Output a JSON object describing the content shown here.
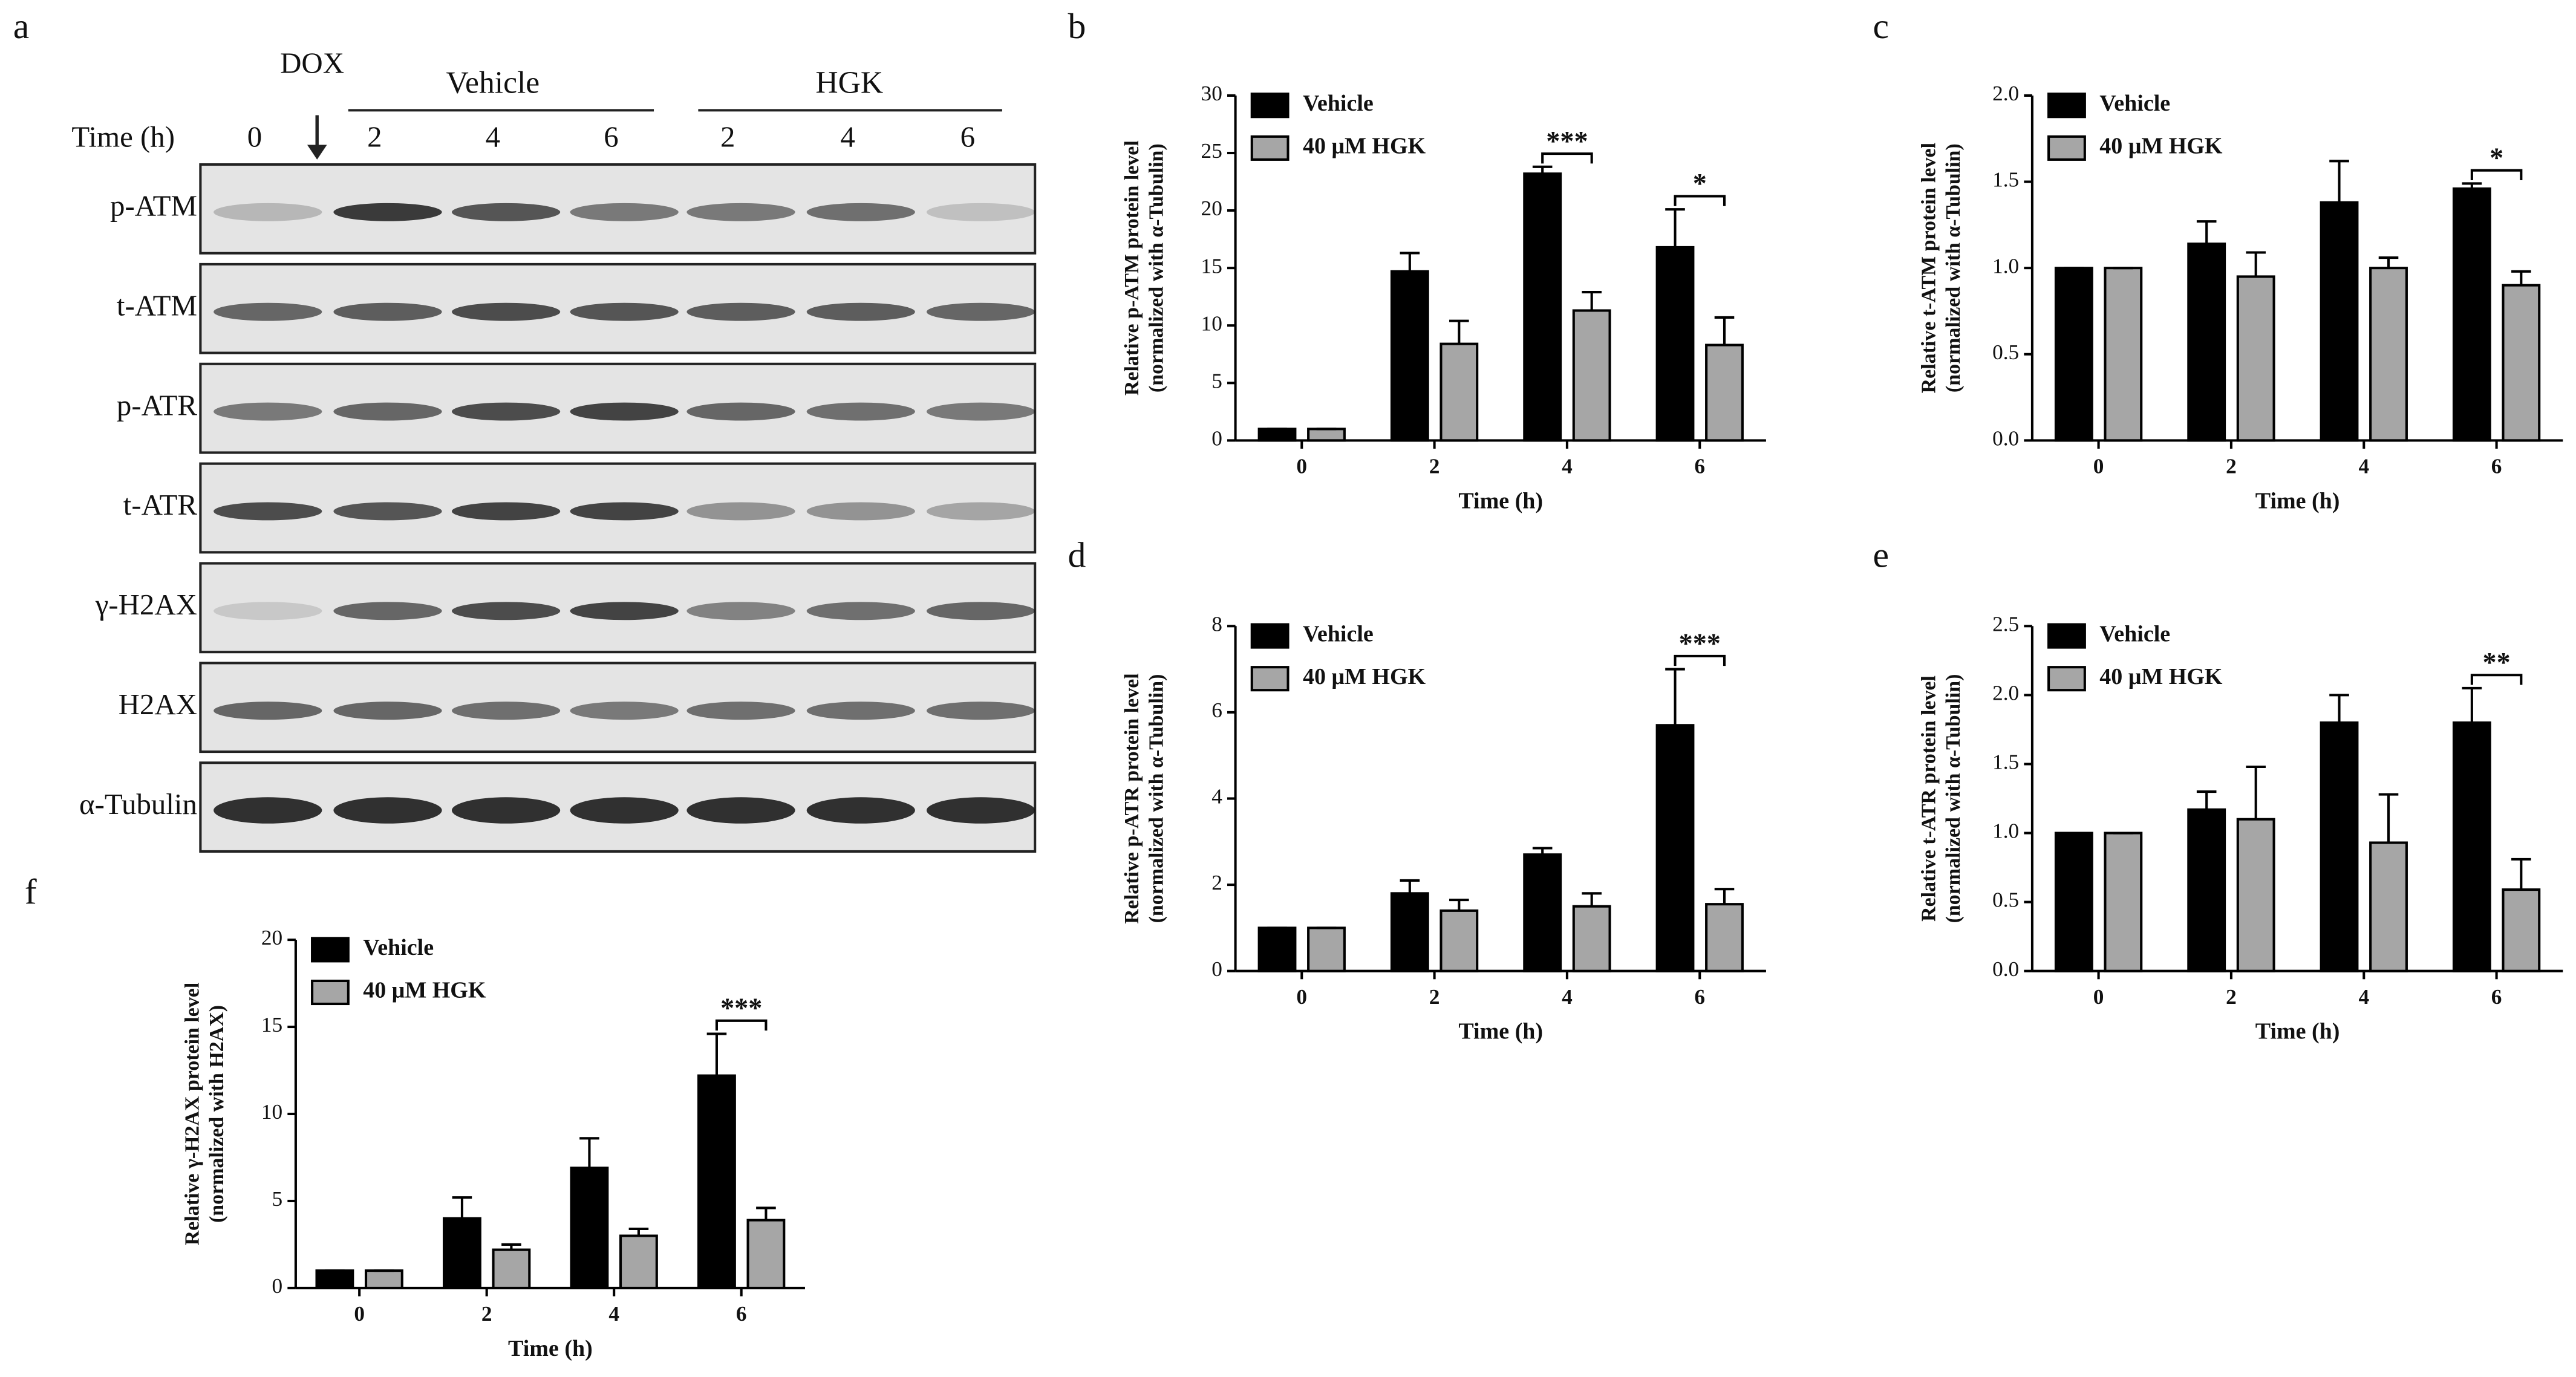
{
  "blot": {
    "panel": "a",
    "treatment": "DOX",
    "groups": [
      "Vehicle",
      "HGK"
    ],
    "time_label": "Time (h)",
    "lanes": [
      "0",
      "2",
      "4",
      "6",
      "2",
      "4",
      "6"
    ],
    "rows": [
      "p-ATM",
      "t-ATM",
      "p-ATR",
      "t-ATR",
      "γ-H2AX",
      "H2AX",
      "α-Tubulin"
    ]
  },
  "chart_data": [
    {
      "type": "bar",
      "panel": "b",
      "ylabel": [
        "Relative p-ATM protein level",
        "(normalized with α-Tubulin)"
      ],
      "xlabel": "Time (h)",
      "categories": [
        "0",
        "2",
        "4",
        "6"
      ],
      "series": [
        {
          "name": "Vehicle",
          "color": "#000000",
          "values": [
            1,
            14.7,
            23.2,
            16.8
          ],
          "errors": [
            0,
            1.6,
            0.6,
            3.3
          ]
        },
        {
          "name": "40 μM HGK",
          "color": "#a6a6a6",
          "values": [
            1,
            8.4,
            11.3,
            8.3
          ],
          "errors": [
            0,
            2.0,
            1.6,
            2.4
          ]
        }
      ],
      "ylim": [
        0,
        30
      ],
      "yticks": [
        0,
        5,
        10,
        15,
        20,
        25,
        30
      ],
      "annotations": [
        {
          "text": "***",
          "category": "4"
        },
        {
          "text": "*",
          "category": "6"
        }
      ]
    },
    {
      "type": "bar",
      "panel": "c",
      "ylabel": [
        "Relative t-ATM protein level",
        "(normalized with α-Tubulin)"
      ],
      "xlabel": "Time (h)",
      "categories": [
        "0",
        "2",
        "4",
        "6"
      ],
      "series": [
        {
          "name": "Vehicle",
          "color": "#000000",
          "values": [
            1,
            1.14,
            1.38,
            1.46
          ],
          "errors": [
            0,
            0.13,
            0.24,
            0.03
          ]
        },
        {
          "name": "40 μM HGK",
          "color": "#a6a6a6",
          "values": [
            1,
            0.95,
            1.0,
            0.9
          ],
          "errors": [
            0,
            0.14,
            0.06,
            0.08
          ]
        }
      ],
      "ylim": [
        0,
        2
      ],
      "yticks": [
        {
          "value": 0,
          "label": "0.0"
        },
        {
          "value": 0.5,
          "label": "0.5"
        },
        {
          "value": 1,
          "label": "1.0"
        },
        {
          "value": 1.5,
          "label": "1.5"
        },
        {
          "value": 2,
          "label": "2.0"
        }
      ],
      "annotations": [
        {
          "text": "*",
          "category": "6"
        }
      ]
    },
    {
      "type": "bar",
      "panel": "d",
      "ylabel": [
        "Relative p-ATR protein level",
        "(normalized with α-Tubulin)"
      ],
      "xlabel": "Time (h)",
      "categories": [
        "0",
        "2",
        "4",
        "6"
      ],
      "series": [
        {
          "name": "Vehicle",
          "color": "#000000",
          "values": [
            1,
            1.8,
            2.7,
            5.7
          ],
          "errors": [
            0,
            0.3,
            0.15,
            1.3
          ]
        },
        {
          "name": "40 μM HGK",
          "color": "#a6a6a6",
          "values": [
            1,
            1.4,
            1.5,
            1.55
          ],
          "errors": [
            0,
            0.25,
            0.3,
            0.35
          ]
        }
      ],
      "ylim": [
        0,
        8
      ],
      "yticks": [
        0,
        2,
        4,
        6,
        8
      ],
      "annotations": [
        {
          "text": "***",
          "category": "6"
        }
      ]
    },
    {
      "type": "bar",
      "panel": "e",
      "ylabel": [
        "Relative t-ATR protein level",
        "(normalized with α-Tubulin)"
      ],
      "xlabel": "Time (h)",
      "categories": [
        "0",
        "2",
        "4",
        "6"
      ],
      "series": [
        {
          "name": "Vehicle",
          "color": "#000000",
          "values": [
            1,
            1.17,
            1.8,
            1.8
          ],
          "errors": [
            0,
            0.13,
            0.2,
            0.25
          ]
        },
        {
          "name": "40 μM HGK",
          "color": "#a6a6a6",
          "values": [
            1,
            1.1,
            0.93,
            0.59
          ],
          "errors": [
            0,
            0.38,
            0.35,
            0.22
          ]
        }
      ],
      "ylim": [
        0,
        2.5
      ],
      "yticks": [
        {
          "value": 0,
          "label": "0.0"
        },
        {
          "value": 0.5,
          "label": "0.5"
        },
        {
          "value": 1,
          "label": "1.0"
        },
        {
          "value": 1.5,
          "label": "1.5"
        },
        {
          "value": 2,
          "label": "2.0"
        },
        {
          "value": 2.5,
          "label": "2.5"
        }
      ],
      "annotations": [
        {
          "text": "**",
          "category": "6"
        }
      ]
    },
    {
      "type": "bar",
      "panel": "f",
      "ylabel": [
        "Relative γ-H2AX protein level",
        "(normalized with H2AX)"
      ],
      "xlabel": "Time (h)",
      "categories": [
        "0",
        "2",
        "4",
        "6"
      ],
      "series": [
        {
          "name": "Vehicle",
          "color": "#000000",
          "values": [
            1,
            4.0,
            6.9,
            12.2
          ],
          "errors": [
            0,
            1.2,
            1.7,
            2.4
          ]
        },
        {
          "name": "40 μM HGK",
          "color": "#a6a6a6",
          "values": [
            1,
            2.2,
            3.0,
            3.9
          ],
          "errors": [
            0,
            0.3,
            0.4,
            0.7
          ]
        }
      ],
      "ylim": [
        0,
        20
      ],
      "yticks": [
        0,
        5,
        10,
        15,
        20
      ],
      "annotations": [
        {
          "text": "***",
          "category": "6"
        }
      ]
    }
  ]
}
